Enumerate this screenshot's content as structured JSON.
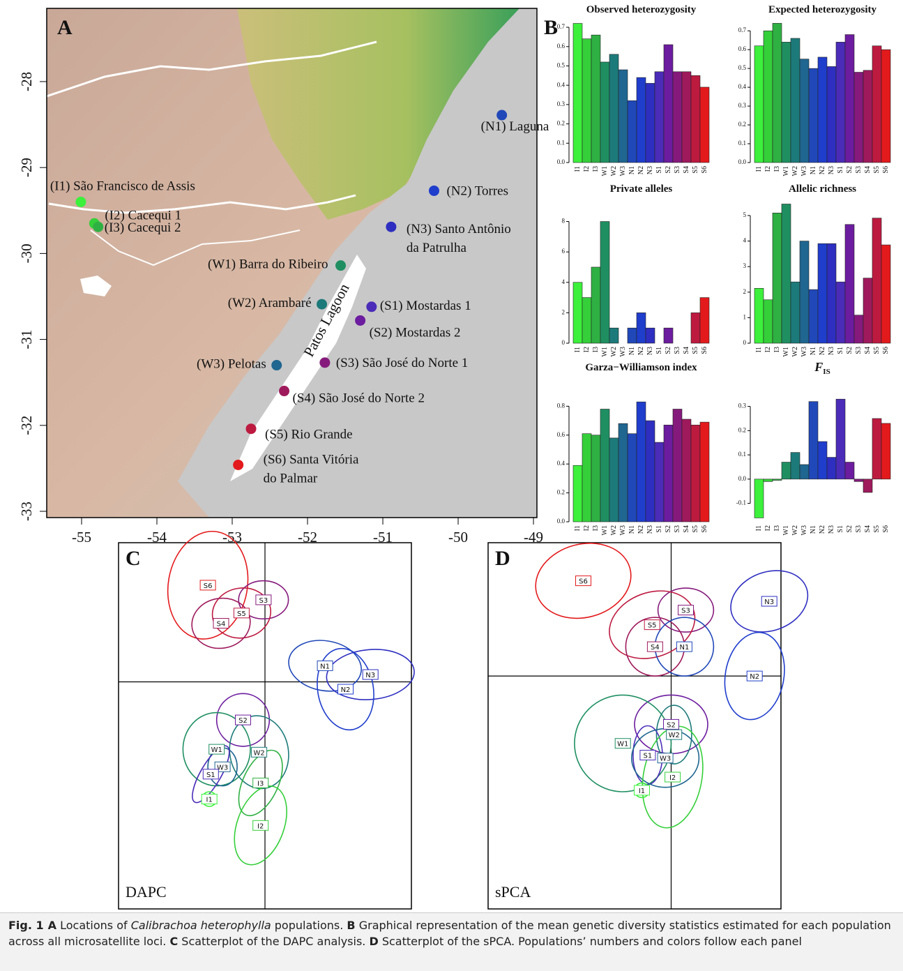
{
  "panels": {
    "a": "A",
    "b": "B",
    "c": "C",
    "d": "D"
  },
  "population_colors": {
    "I1": "#3cf03c",
    "I2": "#35cf3a",
    "I3": "#2fb043",
    "W1": "#1f8f62",
    "W2": "#1d7a7a",
    "W3": "#1f6690",
    "N1": "#2048b8",
    "N2": "#1f3ecc",
    "N3": "#2e2fc0",
    "S1": "#4a2cb8",
    "S2": "#6c1c9e",
    "S3": "#851a7c",
    "S4": "#9e1a5c",
    "S5": "#bd1a40",
    "S6": "#e31a1c"
  },
  "map": {
    "xlim": [
      -55.463,
      -48.954
    ],
    "ylim": [
      -33.073,
      -27.148
    ],
    "xticks": [
      -55,
      -54,
      -53,
      -52,
      -51,
      -50,
      -49
    ],
    "yticks": [
      -28,
      -29,
      -30,
      -31,
      -32,
      -33
    ],
    "lagoon_label": "Patos Lagoon",
    "sites": [
      {
        "label": [
          "(N1) Laguna"
        ],
        "lon": -49.42,
        "lat": -28.39,
        "color": "#2048b8"
      },
      {
        "label": [
          "(N2) Torres"
        ],
        "lon": -50.32,
        "lat": -29.27,
        "color": "#1f3ecc"
      },
      {
        "label": [
          "(N3) Santo Antônio",
          "da Patrulha"
        ],
        "lon": -50.89,
        "lat": -29.69,
        "color": "#2e2fc0"
      },
      {
        "label": [
          "(I1) São Francisco de Assis"
        ],
        "lon": -55.01,
        "lat": -29.4,
        "color": "#3cf03c"
      },
      {
        "label": [
          "(I2) Cacequi 1"
        ],
        "lon": -54.83,
        "lat": -29.65,
        "color": "#35cf3a"
      },
      {
        "label": [
          "(I3) Cacequi 2"
        ],
        "lon": -54.78,
        "lat": -29.69,
        "color": "#2fb043"
      },
      {
        "label": [
          "(W1) Barra do Ribeiro"
        ],
        "lon": -51.56,
        "lat": -30.14,
        "color": "#1f8f62"
      },
      {
        "label": [
          "(W2) Arambaré"
        ],
        "lon": -51.81,
        "lat": -30.59,
        "color": "#1d7a7a"
      },
      {
        "label": [
          "(W3) Pelotas"
        ],
        "lon": -52.41,
        "lat": -31.3,
        "color": "#1f6690"
      },
      {
        "label": [
          "(S1) Mostardas 1"
        ],
        "lon": -51.15,
        "lat": -30.62,
        "color": "#4a2cb8"
      },
      {
        "label": [
          "(S2) Mostardas 2"
        ],
        "lon": -51.3,
        "lat": -30.78,
        "color": "#6c1c9e"
      },
      {
        "label": [
          "(S3) São José do Norte 1"
        ],
        "lon": -51.77,
        "lat": -31.27,
        "color": "#851a7c"
      },
      {
        "label": [
          "(S4) São José do Norte 2"
        ],
        "lon": -52.31,
        "lat": -31.6,
        "color": "#9e1a5c"
      },
      {
        "label": [
          "(S5) Rio Grande"
        ],
        "lon": -52.75,
        "lat": -32.04,
        "color": "#bd1a40"
      },
      {
        "label": [
          "(S6) Santa Vitória",
          "do Palmar"
        ],
        "lon": -52.92,
        "lat": -32.46,
        "color": "#e31a1c"
      }
    ]
  },
  "chart_data": [
    {
      "type": "bar",
      "title": "Observed heterozygosity",
      "categories": [
        "I1",
        "I2",
        "I3",
        "W1",
        "W2",
        "W3",
        "N1",
        "N2",
        "N3",
        "S1",
        "S2",
        "S3",
        "S4",
        "S5",
        "S6"
      ],
      "values": [
        0.72,
        0.64,
        0.66,
        0.52,
        0.56,
        0.48,
        0.32,
        0.44,
        0.41,
        0.47,
        0.61,
        0.47,
        0.47,
        0.45,
        0.39
      ],
      "ylim": [
        0,
        0.74
      ],
      "yticks": [
        {
          "value": 0,
          "label": "0.0"
        },
        0.1,
        0.2,
        0.3,
        0.4,
        0.5,
        0.6,
        0.7
      ]
    },
    {
      "type": "bar",
      "title": "Expected heterozygosity",
      "categories": [
        "I1",
        "I2",
        "I3",
        "W1",
        "W2",
        "W3",
        "N1",
        "N2",
        "N3",
        "S1",
        "S2",
        "S3",
        "S4",
        "S5",
        "S6"
      ],
      "values": [
        0.62,
        0.7,
        0.74,
        0.64,
        0.66,
        0.55,
        0.5,
        0.56,
        0.51,
        0.64,
        0.68,
        0.48,
        0.49,
        0.62,
        0.6
      ],
      "ylim": [
        0,
        0.76
      ],
      "yticks": [
        {
          "value": 0,
          "label": "0.0"
        },
        0.1,
        0.2,
        0.3,
        0.4,
        0.5,
        0.6,
        0.7
      ]
    },
    {
      "type": "bar",
      "title": "Private alleles",
      "categories": [
        "I1",
        "I2",
        "I3",
        "W1",
        "W2",
        "W3",
        "N1",
        "N2",
        "N3",
        "S1",
        "S2",
        "S3",
        "S4",
        "S5",
        "S6"
      ],
      "values": [
        4,
        3,
        5,
        8,
        1,
        0,
        1,
        2,
        1,
        0,
        1,
        0,
        0,
        2,
        3
      ],
      "ylim": [
        0,
        9.4
      ],
      "yticks": [
        0,
        2,
        4,
        6,
        8
      ]
    },
    {
      "type": "bar",
      "title": "Allelic richness",
      "categories": [
        "I1",
        "I2",
        "I3",
        "W1",
        "W2",
        "W3",
        "N1",
        "N2",
        "N3",
        "S1",
        "S2",
        "S3",
        "S4",
        "S5",
        "S6"
      ],
      "values": [
        2.15,
        1.7,
        5.1,
        5.45,
        2.4,
        4.0,
        2.1,
        3.9,
        3.9,
        2.4,
        4.65,
        1.1,
        2.55,
        4.9,
        3.85
      ],
      "ylim": [
        0,
        5.6
      ],
      "yticks": [
        0,
        1,
        2,
        3,
        4,
        5
      ]
    },
    {
      "type": "bar",
      "title": "Garza−Williamson index",
      "categories": [
        "I1",
        "I2",
        "I3",
        "W1",
        "W2",
        "W3",
        "N1",
        "N2",
        "N3",
        "S1",
        "S2",
        "S3",
        "S4",
        "S5",
        "S6"
      ],
      "values": [
        0.39,
        0.61,
        0.6,
        0.78,
        0.58,
        0.68,
        0.61,
        0.83,
        0.7,
        0.55,
        0.67,
        0.78,
        0.71,
        0.67,
        0.69
      ],
      "ylim": [
        0,
        0.99
      ],
      "yticks": [
        {
          "value": 0,
          "label": "0.0"
        },
        0.2,
        0.4,
        0.6,
        0.8
      ]
    },
    {
      "type": "bar",
      "title": "F",
      "title_subscript": "IS",
      "categories": [
        "I1",
        "I2",
        "I3",
        "W1",
        "W2",
        "W3",
        "N1",
        "N2",
        "N3",
        "S1",
        "S2",
        "S3",
        "S4",
        "S5",
        "S6"
      ],
      "values": [
        -0.16,
        -0.01,
        -0.005,
        0.07,
        0.11,
        0.06,
        0.32,
        0.155,
        0.09,
        0.33,
        0.07,
        -0.01,
        -0.055,
        0.25,
        0.23
      ],
      "ylim": [
        -0.176,
        0.414
      ],
      "yticks": [
        -0.1,
        {
          "value": 0,
          "label": "0.0"
        },
        0.1,
        0.2,
        0.3
      ]
    }
  ],
  "scatter_panels": [
    {
      "type": "scatter",
      "label": "DAPC",
      "xlim": [
        -1,
        1
      ],
      "ylim": [
        -1.55,
        0.95
      ],
      "groups": [
        {
          "name": "S6",
          "x": -0.39,
          "y": 0.66,
          "rx": 0.27,
          "ry": 0.37,
          "angle": -10
        },
        {
          "name": "S3",
          "x": -0.01,
          "y": 0.56,
          "rx": 0.17,
          "ry": 0.13,
          "angle": 0
        },
        {
          "name": "S5",
          "x": -0.16,
          "y": 0.47,
          "rx": 0.2,
          "ry": 0.17,
          "angle": 10
        },
        {
          "name": "S4",
          "x": -0.3,
          "y": 0.4,
          "rx": 0.2,
          "ry": 0.17,
          "angle": 10
        },
        {
          "name": "N1",
          "x": 0.41,
          "y": 0.11,
          "rx": 0.25,
          "ry": 0.17,
          "angle": -10
        },
        {
          "name": "N3",
          "x": 0.72,
          "y": 0.05,
          "rx": 0.3,
          "ry": 0.17,
          "angle": 5
        },
        {
          "name": "N2",
          "x": 0.55,
          "y": -0.05,
          "rx": 0.19,
          "ry": 0.28,
          "angle": 10
        },
        {
          "name": "S2",
          "x": -0.15,
          "y": -0.26,
          "rx": 0.18,
          "ry": 0.18,
          "angle": 0
        },
        {
          "name": "W1",
          "x": -0.33,
          "y": -0.46,
          "rx": 0.23,
          "ry": 0.25,
          "angle": 0
        },
        {
          "name": "W2",
          "x": -0.04,
          "y": -0.48,
          "rx": 0.2,
          "ry": 0.25,
          "angle": 10
        },
        {
          "name": "W3",
          "x": -0.29,
          "y": -0.58,
          "rx": 0.1,
          "ry": 0.13,
          "angle": 0
        },
        {
          "name": "S1",
          "x": -0.37,
          "y": -0.63,
          "rx": 0.07,
          "ry": 0.22,
          "angle": -30
        },
        {
          "name": "I3",
          "x": -0.03,
          "y": -0.69,
          "rx": 0.12,
          "ry": 0.24,
          "angle": -25
        },
        {
          "name": "I1",
          "x": -0.38,
          "y": -0.8,
          "rx": 0.05,
          "ry": 0.05,
          "angle": 0
        },
        {
          "name": "I2",
          "x": -0.03,
          "y": -0.98,
          "rx": 0.16,
          "ry": 0.28,
          "angle": -20
        }
      ]
    },
    {
      "type": "scatter",
      "label": "sPCA",
      "xlim": [
        -1.25,
        0.75
      ],
      "ylim": [
        -1.59,
        0.91
      ],
      "groups": [
        {
          "name": "S6",
          "x": -0.6,
          "y": 0.65,
          "rx": 0.33,
          "ry": 0.25,
          "angle": 15
        },
        {
          "name": "S3",
          "x": 0.1,
          "y": 0.45,
          "rx": 0.19,
          "ry": 0.15,
          "angle": 0
        },
        {
          "name": "S5",
          "x": -0.13,
          "y": 0.35,
          "rx": 0.3,
          "ry": 0.22,
          "angle": 20
        },
        {
          "name": "N3",
          "x": 0.67,
          "y": 0.51,
          "rx": 0.27,
          "ry": 0.2,
          "angle": 20
        },
        {
          "name": "S4",
          "x": -0.11,
          "y": 0.2,
          "rx": 0.2,
          "ry": 0.2,
          "angle": 0
        },
        {
          "name": "N1",
          "x": 0.09,
          "y": 0.2,
          "rx": 0.2,
          "ry": 0.2,
          "angle": 0
        },
        {
          "name": "N2",
          "x": 0.57,
          "y": 0.0,
          "rx": 0.2,
          "ry": 0.3,
          "angle": -10
        },
        {
          "name": "S2",
          "x": 0.0,
          "y": -0.33,
          "rx": 0.25,
          "ry": 0.2,
          "angle": 0
        },
        {
          "name": "W2",
          "x": 0.02,
          "y": -0.4,
          "rx": 0.12,
          "ry": 0.2,
          "angle": 0
        },
        {
          "name": "W1",
          "x": -0.33,
          "y": -0.46,
          "rx": 0.33,
          "ry": 0.33,
          "angle": 0
        },
        {
          "name": "S1",
          "x": -0.16,
          "y": -0.54,
          "rx": 0.1,
          "ry": 0.2,
          "angle": 0
        },
        {
          "name": "W3",
          "x": -0.04,
          "y": -0.56,
          "rx": 0.23,
          "ry": 0.2,
          "angle": 0
        },
        {
          "name": "I2",
          "x": 0.01,
          "y": -0.69,
          "rx": 0.2,
          "ry": 0.35,
          "angle": -10
        },
        {
          "name": "I1",
          "x": -0.2,
          "y": -0.78,
          "rx": 0.05,
          "ry": 0.05,
          "angle": 0
        }
      ]
    }
  ],
  "caption": [
    {
      "text": "Fig. 1",
      "style": "bold"
    },
    {
      "text": "A",
      "style": "bold"
    },
    {
      "text": " Locations of "
    },
    {
      "text": "Calibrachoa heterophylla",
      "style": "italic"
    },
    {
      "text": " populations. "
    },
    {
      "text": "B",
      "style": "bold"
    },
    {
      "text": " Graphical representation of the mean genetic diversity statistics estimated for each population across all microsatellite loci. "
    },
    {
      "text": "C",
      "style": "bold"
    },
    {
      "text": " Scatterplot of the DAPC analysis. "
    },
    {
      "text": "D",
      "style": "bold"
    },
    {
      "text": " Scatterplot of the sPCA. Populations’ numbers and colors follow each panel"
    }
  ]
}
